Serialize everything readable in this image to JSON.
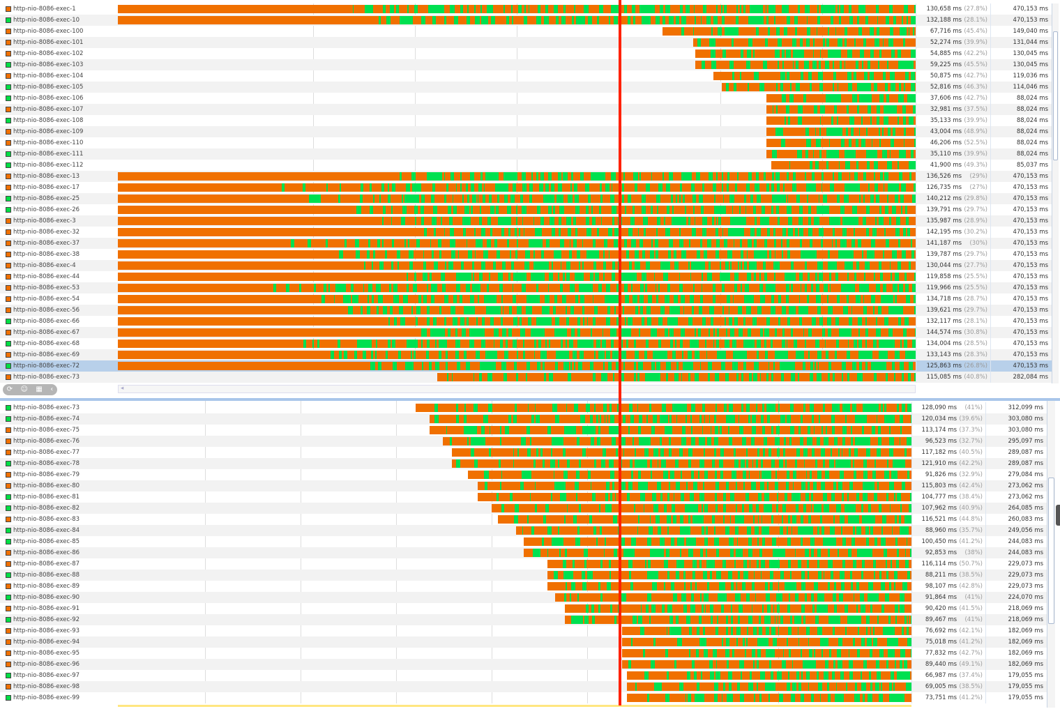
{
  "colors": {
    "running": "#f07000",
    "sleeping": "#00e050",
    "marker": "#ff2200",
    "selected": "#b8d0ea"
  },
  "top_panel": {
    "selected_row": "http-nio-8086-exec-72",
    "rows": [
      [
        "http-nio-8086-exec-1",
        "O",
        "130,658 ms",
        "(27.8%)",
        "470,153 ms"
      ],
      [
        "http-nio-8086-exec-10",
        "G",
        "132,188 ms",
        "(28.1%)",
        "470,153 ms"
      ],
      [
        "http-nio-8086-exec-100",
        "O",
        "67,716 ms",
        "(45.4%)",
        "149,040 ms"
      ],
      [
        "http-nio-8086-exec-101",
        "O",
        "52,274 ms",
        "(39.9%)",
        "131,044 ms"
      ],
      [
        "http-nio-8086-exec-102",
        "O",
        "54,885 ms",
        "(42.2%)",
        "130,045 ms"
      ],
      [
        "http-nio-8086-exec-103",
        "G",
        "59,225 ms",
        "(45.5%)",
        "130,045 ms"
      ],
      [
        "http-nio-8086-exec-104",
        "O",
        "50,875 ms",
        "(42.7%)",
        "119,036 ms"
      ],
      [
        "http-nio-8086-exec-105",
        "G",
        "52,816 ms",
        "(46.3%)",
        "114,046 ms"
      ],
      [
        "http-nio-8086-exec-106",
        "G",
        "37,606 ms",
        "(42.7%)",
        "88,024 ms"
      ],
      [
        "http-nio-8086-exec-107",
        "O",
        "32,981 ms",
        "(37.5%)",
        "88,024 ms"
      ],
      [
        "http-nio-8086-exec-108",
        "G",
        "35,133 ms",
        "(39.9%)",
        "88,024 ms"
      ],
      [
        "http-nio-8086-exec-109",
        "O",
        "43,004 ms",
        "(48.9%)",
        "88,024 ms"
      ],
      [
        "http-nio-8086-exec-110",
        "O",
        "46,206 ms",
        "(52.5%)",
        "88,024 ms"
      ],
      [
        "http-nio-8086-exec-111",
        "G",
        "35,110 ms",
        "(39.9%)",
        "88,024 ms"
      ],
      [
        "http-nio-8086-exec-112",
        "G",
        "41,900 ms",
        "(49.3%)",
        "85,037 ms"
      ],
      [
        "http-nio-8086-exec-13",
        "O",
        "136,526 ms",
        "(29%)",
        "470,153 ms"
      ],
      [
        "http-nio-8086-exec-17",
        "O",
        "126,735 ms",
        "(27%)",
        "470,153 ms"
      ],
      [
        "http-nio-8086-exec-25",
        "G",
        "140,212 ms",
        "(29.8%)",
        "470,153 ms"
      ],
      [
        "http-nio-8086-exec-26",
        "G",
        "139,791 ms",
        "(29.7%)",
        "470,153 ms"
      ],
      [
        "http-nio-8086-exec-3",
        "O",
        "135,987 ms",
        "(28.9%)",
        "470,153 ms"
      ],
      [
        "http-nio-8086-exec-32",
        "O",
        "142,195 ms",
        "(30.2%)",
        "470,153 ms"
      ],
      [
        "http-nio-8086-exec-37",
        "O",
        "141,187 ms",
        "(30%)",
        "470,153 ms"
      ],
      [
        "http-nio-8086-exec-38",
        "O",
        "139,787 ms",
        "(29.7%)",
        "470,153 ms"
      ],
      [
        "http-nio-8086-exec-4",
        "O",
        "130,044 ms",
        "(27.7%)",
        "470,153 ms"
      ],
      [
        "http-nio-8086-exec-44",
        "O",
        "119,858 ms",
        "(25.5%)",
        "470,153 ms"
      ],
      [
        "http-nio-8086-exec-53",
        "O",
        "119,966 ms",
        "(25.5%)",
        "470,153 ms"
      ],
      [
        "http-nio-8086-exec-54",
        "O",
        "134,718 ms",
        "(28.7%)",
        "470,153 ms"
      ],
      [
        "http-nio-8086-exec-56",
        "O",
        "139,621 ms",
        "(29.7%)",
        "470,153 ms"
      ],
      [
        "http-nio-8086-exec-66",
        "G",
        "132,117 ms",
        "(28.1%)",
        "470,153 ms"
      ],
      [
        "http-nio-8086-exec-67",
        "O",
        "144,574 ms",
        "(30.8%)",
        "470,153 ms"
      ],
      [
        "http-nio-8086-exec-68",
        "G",
        "134,004 ms",
        "(28.5%)",
        "470,153 ms"
      ],
      [
        "http-nio-8086-exec-69",
        "O",
        "133,143 ms",
        "(28.3%)",
        "470,153 ms"
      ],
      [
        "http-nio-8086-exec-72",
        "G",
        "125,863 ms",
        "(26.8%)",
        "470,153 ms"
      ],
      [
        "http-nio-8086-exec-73",
        "O",
        "115,085 ms",
        "(40.8%)",
        "282,084 ms"
      ]
    ]
  },
  "bottom_panel": {
    "rows": [
      [
        "http-nio-8086-exec-73",
        "G",
        "128,090 ms",
        "(41%)",
        "312,099 ms"
      ],
      [
        "http-nio-8086-exec-74",
        "G",
        "120,034 ms",
        "(39.6%)",
        "303,080 ms"
      ],
      [
        "http-nio-8086-exec-75",
        "O",
        "113,174 ms",
        "(37.3%)",
        "303,080 ms"
      ],
      [
        "http-nio-8086-exec-76",
        "O",
        "96,523 ms",
        "(32.7%)",
        "295,097 ms"
      ],
      [
        "http-nio-8086-exec-77",
        "O",
        "117,182 ms",
        "(40.5%)",
        "289,087 ms"
      ],
      [
        "http-nio-8086-exec-78",
        "G",
        "121,910 ms",
        "(42.2%)",
        "289,087 ms"
      ],
      [
        "http-nio-8086-exec-79",
        "O",
        "91,826 ms",
        "(32.9%)",
        "279,084 ms"
      ],
      [
        "http-nio-8086-exec-80",
        "O",
        "115,803 ms",
        "(42.4%)",
        "273,062 ms"
      ],
      [
        "http-nio-8086-exec-81",
        "G",
        "104,777 ms",
        "(38.4%)",
        "273,062 ms"
      ],
      [
        "http-nio-8086-exec-82",
        "G",
        "107,962 ms",
        "(40.9%)",
        "264,085 ms"
      ],
      [
        "http-nio-8086-exec-83",
        "O",
        "116,521 ms",
        "(44.8%)",
        "260,083 ms"
      ],
      [
        "http-nio-8086-exec-84",
        "G",
        "88,960 ms",
        "(35.7%)",
        "249,056 ms"
      ],
      [
        "http-nio-8086-exec-85",
        "G",
        "100,450 ms",
        "(41.2%)",
        "244,083 ms"
      ],
      [
        "http-nio-8086-exec-86",
        "O",
        "92,853 ms",
        "(38%)",
        "244,083 ms"
      ],
      [
        "http-nio-8086-exec-87",
        "O",
        "116,114 ms",
        "(50.7%)",
        "229,073 ms"
      ],
      [
        "http-nio-8086-exec-88",
        "G",
        "88,211 ms",
        "(38.5%)",
        "229,073 ms"
      ],
      [
        "http-nio-8086-exec-89",
        "O",
        "98,107 ms",
        "(42.8%)",
        "229,073 ms"
      ],
      [
        "http-nio-8086-exec-90",
        "G",
        "91,864 ms",
        "(41%)",
        "224,070 ms"
      ],
      [
        "http-nio-8086-exec-91",
        "O",
        "90,420 ms",
        "(41.5%)",
        "218,069 ms"
      ],
      [
        "http-nio-8086-exec-92",
        "G",
        "89,467 ms",
        "(41%)",
        "218,069 ms"
      ],
      [
        "http-nio-8086-exec-93",
        "O",
        "76,692 ms",
        "(42.1%)",
        "182,069 ms"
      ],
      [
        "http-nio-8086-exec-94",
        "O",
        "75,018 ms",
        "(41.2%)",
        "182,069 ms"
      ],
      [
        "http-nio-8086-exec-95",
        "O",
        "77,832 ms",
        "(42.7%)",
        "182,069 ms"
      ],
      [
        "http-nio-8086-exec-96",
        "O",
        "89,440 ms",
        "(49.1%)",
        "182,069 ms"
      ],
      [
        "http-nio-8086-exec-97",
        "G",
        "66,987 ms",
        "(37.4%)",
        "179,055 ms"
      ],
      [
        "http-nio-8086-exec-98",
        "O",
        "69,005 ms",
        "(38.5%)",
        "179,055 ms"
      ],
      [
        "http-nio-8086-exec-99",
        "G",
        "73,751 ms",
        "(41.2%)",
        "179,055 ms"
      ]
    ]
  }
}
